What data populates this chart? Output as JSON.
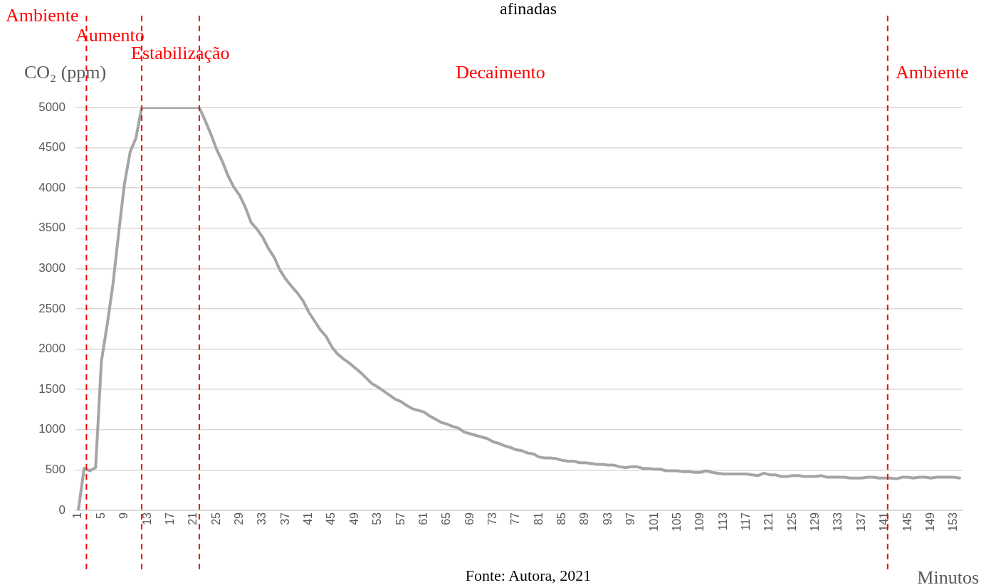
{
  "chart_data": {
    "type": "line",
    "title": "afinadas",
    "xlabel": "Minutos",
    "ylabel": "CO₂ (ppm)",
    "x": [
      1,
      2,
      3,
      4,
      5,
      6,
      7,
      8,
      9,
      10,
      11,
      12,
      13,
      14,
      15,
      16,
      17,
      18,
      19,
      20,
      21,
      22,
      23,
      24,
      25,
      26,
      27,
      28,
      29,
      30,
      31,
      32,
      33,
      34,
      35,
      36,
      37,
      38,
      39,
      40,
      41,
      42,
      43,
      44,
      45,
      46,
      47,
      48,
      49,
      50,
      51,
      52,
      53,
      54,
      55,
      56,
      57,
      58,
      59,
      60,
      61,
      62,
      63,
      64,
      65,
      66,
      67,
      68,
      69,
      70,
      71,
      72,
      73,
      74,
      75,
      76,
      77,
      78,
      79,
      80,
      81,
      82,
      83,
      84,
      85,
      86,
      87,
      88,
      89,
      90,
      91,
      92,
      93,
      94,
      95,
      96,
      97,
      98,
      99,
      100,
      101,
      102,
      103,
      104,
      105,
      106,
      107,
      108,
      109,
      110,
      111,
      112,
      113,
      114,
      115,
      116,
      117,
      118,
      119,
      120,
      121,
      122,
      123,
      124,
      125,
      126,
      127,
      128,
      129,
      130,
      131,
      132,
      133,
      134,
      135,
      136,
      137,
      138,
      139,
      140,
      141,
      142,
      143,
      144,
      145,
      146,
      147,
      148,
      149,
      150,
      151,
      152,
      153,
      154
    ],
    "series": [
      {
        "color": "#a5a5a5",
        "values": [
          0,
          520,
          490,
          530,
          1850,
          2300,
          2800,
          3440,
          4050,
          4450,
          4620,
          5000,
          5000,
          5000,
          5000,
          5000,
          5000,
          5000,
          5000,
          5000,
          5000,
          5000,
          4840,
          4670,
          4480,
          4330,
          4150,
          4010,
          3910,
          3760,
          3570,
          3490,
          3390,
          3250,
          3140,
          2980,
          2870,
          2780,
          2700,
          2600,
          2460,
          2350,
          2240,
          2160,
          2030,
          1940,
          1880,
          1830,
          1770,
          1710,
          1640,
          1570,
          1530,
          1480,
          1430,
          1380,
          1350,
          1300,
          1260,
          1240,
          1220,
          1170,
          1130,
          1090,
          1070,
          1040,
          1020,
          970,
          950,
          930,
          910,
          890,
          850,
          830,
          800,
          780,
          750,
          740,
          710,
          700,
          660,
          650,
          650,
          640,
          620,
          610,
          610,
          590,
          590,
          580,
          570,
          570,
          560,
          560,
          540,
          530,
          540,
          540,
          520,
          520,
          510,
          510,
          490,
          490,
          490,
          480,
          480,
          470,
          470,
          490,
          470,
          460,
          450,
          450,
          450,
          450,
          450,
          440,
          430,
          460,
          440,
          440,
          420,
          420,
          430,
          430,
          420,
          420,
          420,
          430,
          410,
          410,
          410,
          410,
          400,
          400,
          400,
          410,
          410,
          400,
          400,
          400,
          390,
          410,
          410,
          400,
          410,
          410,
          400,
          410,
          410,
          410,
          410,
          400
        ]
      }
    ],
    "xlim": [
      0.5,
      154.5
    ],
    "xticks": [
      1,
      5,
      9,
      13,
      17,
      21,
      25,
      29,
      33,
      37,
      41,
      45,
      49,
      53,
      57,
      61,
      65,
      69,
      73,
      77,
      81,
      85,
      89,
      93,
      97,
      101,
      105,
      109,
      113,
      117,
      121,
      125,
      129,
      133,
      137,
      141,
      145,
      149,
      153
    ],
    "ylim": [
      0,
      5000
    ],
    "yticks": [
      0,
      500,
      1000,
      1500,
      2000,
      2500,
      3000,
      3500,
      4000,
      4500,
      5000
    ],
    "grid": "y",
    "legend": false,
    "marker": "none",
    "line_style": "solid",
    "ref_lines": [
      {
        "axis": "x",
        "value": 2.4,
        "color": "#ff0000",
        "line_style": "dashed"
      },
      {
        "axis": "x",
        "value": 12,
        "color": "#ff0000",
        "line_style": "dashed"
      },
      {
        "axis": "x",
        "value": 22,
        "color": "#ff0000",
        "line_style": "dashed"
      },
      {
        "axis": "x",
        "value": 141.5,
        "color": "#ff0000",
        "line_style": "dashed"
      }
    ],
    "annotations": [
      "Ambiente",
      "Aumento",
      "Estabilização",
      "Decaimento",
      "Ambiente",
      "Fonte: Autora, 2021"
    ]
  }
}
